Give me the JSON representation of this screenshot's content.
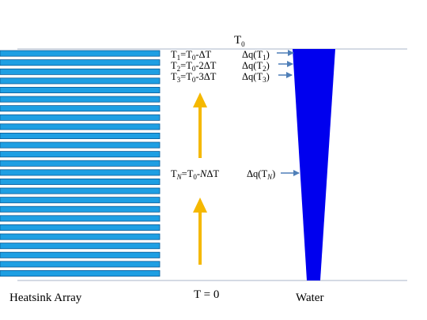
{
  "labels": {
    "t0_top": "T",
    "t0_top_sub": "0",
    "bottom_left": "Heatsink Array",
    "bottom_center": "T = 0",
    "bottom_right": "Water"
  },
  "rows": [
    {
      "left": [
        [
          "T",
          ""
        ],
        [
          "1",
          "sub"
        ],
        [
          "=T",
          ""
        ],
        [
          "0",
          "sub"
        ],
        [
          "-ΔT",
          ""
        ]
      ],
      "right": [
        [
          "Δq(T",
          ""
        ],
        [
          "1",
          "sub"
        ],
        [
          ")",
          ""
        ]
      ]
    },
    {
      "left": [
        [
          "T",
          ""
        ],
        [
          "2",
          "sub"
        ],
        [
          "=T",
          ""
        ],
        [
          "0",
          "sub"
        ],
        [
          "-2ΔT",
          ""
        ]
      ],
      "right": [
        [
          "Δq(T",
          ""
        ],
        [
          "2",
          "sub"
        ],
        [
          ")",
          ""
        ]
      ]
    },
    {
      "left": [
        [
          "T",
          ""
        ],
        [
          "3",
          "sub"
        ],
        [
          "=T",
          ""
        ],
        [
          "0",
          "sub"
        ],
        [
          "-3ΔT",
          ""
        ]
      ],
      "right": [
        [
          "Δq(T",
          ""
        ],
        [
          "3",
          "sub"
        ],
        [
          ")",
          ""
        ]
      ]
    },
    {
      "left": [
        [
          "T",
          ""
        ],
        [
          "N",
          "subi"
        ],
        [
          "=T",
          ""
        ],
        [
          "0",
          "sub"
        ],
        [
          "-",
          ""
        ],
        [
          "N",
          "it"
        ],
        [
          "ΔT",
          ""
        ]
      ],
      "right": [
        [
          "Δq(T",
          ""
        ],
        [
          "N",
          "subi"
        ],
        [
          ")",
          ""
        ]
      ]
    }
  ],
  "heatsink_fin_count": 25,
  "colors": {
    "fin_fill": "#1E9FE3",
    "fin_stroke": "#0A5A96",
    "water": "#0000EE",
    "arrow_up": "#F5B800",
    "arrow_right": "#4F7FB8",
    "line": "#A8B4C8"
  }
}
